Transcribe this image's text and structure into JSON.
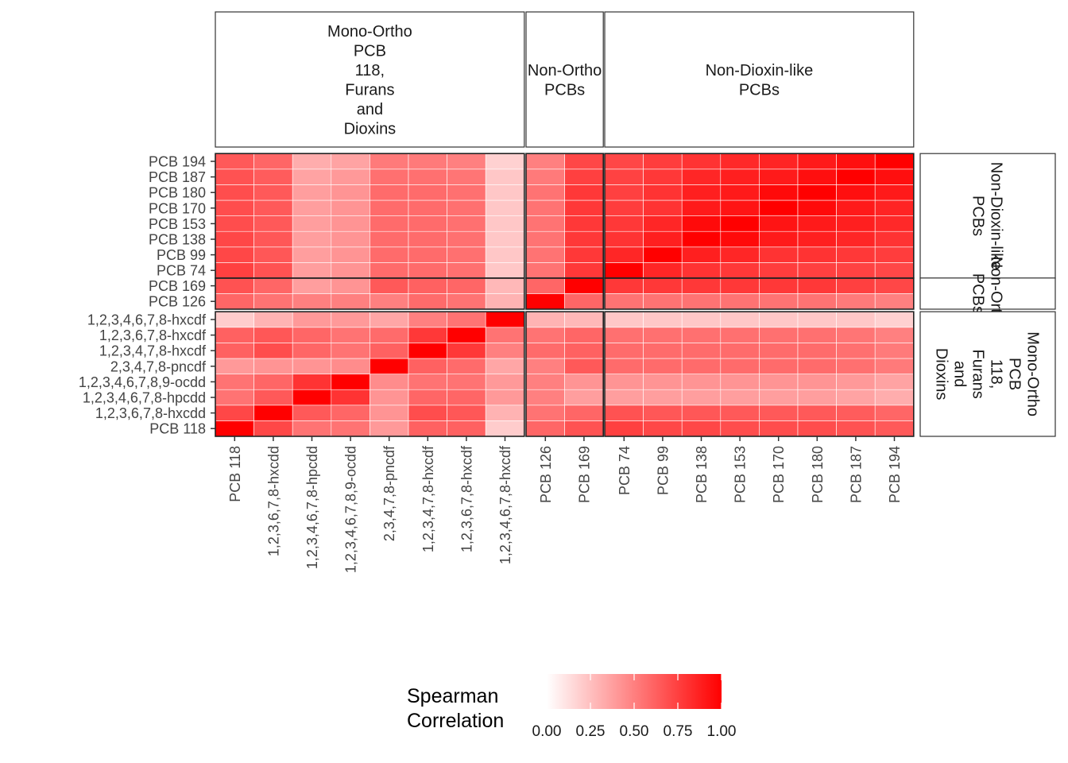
{
  "chart_data": {
    "type": "heatmap",
    "title": "",
    "xlabel": "",
    "ylabel": "",
    "groups": [
      {
        "key": "mono",
        "label": [
          "Mono-Ortho",
          "PCB",
          "118,",
          "Furans",
          "and",
          "Dioxins"
        ],
        "members": [
          "PCB 118",
          "1,2,3,6,7,8-hxcdd",
          "1,2,3,4,6,7,8-hpcdd",
          "1,2,3,4,6,7,8,9-ocdd",
          "2,3,4,7,8-pncdf",
          "1,2,3,4,7,8-hxcdf",
          "1,2,3,6,7,8-hxcdf",
          "1,2,3,4,6,7,8-hxcdf"
        ]
      },
      {
        "key": "nonortho",
        "label": [
          "Non-Ortho",
          "PCBs"
        ],
        "members": [
          "PCB 126",
          "PCB 169"
        ]
      },
      {
        "key": "nondioxin",
        "label": [
          "Non-Dioxin-like",
          "PCBs"
        ],
        "members": [
          "PCB 74",
          "PCB 99",
          "PCB 138",
          "PCB 153",
          "PCB 170",
          "PCB 180",
          "PCB 187",
          "PCB 194"
        ]
      }
    ],
    "x_order": [
      "PCB 118",
      "1,2,3,6,7,8-hxcdd",
      "1,2,3,4,6,7,8-hpcdd",
      "1,2,3,4,6,7,8,9-ocdd",
      "2,3,4,7,8-pncdf",
      "1,2,3,4,7,8-hxcdf",
      "1,2,3,6,7,8-hxcdf",
      "1,2,3,4,6,7,8-hxcdf",
      "PCB 126",
      "PCB 169",
      "PCB 74",
      "PCB 99",
      "PCB 138",
      "PCB 153",
      "PCB 170",
      "PCB 180",
      "PCB 187",
      "PCB 194"
    ],
    "y_order_bottom_to_top": [
      "PCB 118",
      "1,2,3,6,7,8-hxcdd",
      "1,2,3,4,6,7,8-hpcdd",
      "1,2,3,4,6,7,8,9-ocdd",
      "2,3,4,7,8-pncdf",
      "1,2,3,4,7,8-hxcdf",
      "1,2,3,6,7,8-hxcdf",
      "1,2,3,4,6,7,8-hxcdf",
      "PCB 126",
      "PCB 169",
      "PCB 74",
      "PCB 99",
      "PCB 138",
      "PCB 153",
      "PCB 170",
      "PCB 180",
      "PCB 187",
      "PCB 194"
    ],
    "right_strip_labels": [
      {
        "group": "nondioxin",
        "lines": [
          "Non-Dioxin-like",
          "PCBs"
        ]
      },
      {
        "group": "nonortho",
        "lines": [
          "Non-Ortho",
          "PCBs"
        ]
      },
      {
        "group": "mono",
        "lines": [
          "Mono-Ortho",
          "PCB",
          "118,",
          "Furans",
          "and",
          "Dioxins"
        ]
      }
    ],
    "matrix": [
      [
        1.0,
        0.72,
        0.55,
        0.55,
        0.4,
        0.62,
        0.62,
        0.2,
        0.6,
        0.68,
        0.75,
        0.72,
        0.72,
        0.7,
        0.7,
        0.7,
        0.68,
        0.65
      ],
      [
        0.72,
        1.0,
        0.65,
        0.6,
        0.42,
        0.7,
        0.66,
        0.3,
        0.55,
        0.6,
        0.68,
        0.66,
        0.66,
        0.65,
        0.65,
        0.65,
        0.64,
        0.6
      ],
      [
        0.55,
        0.65,
        1.0,
        0.8,
        0.42,
        0.6,
        0.6,
        0.4,
        0.5,
        0.38,
        0.38,
        0.38,
        0.38,
        0.38,
        0.38,
        0.38,
        0.36,
        0.32
      ],
      [
        0.55,
        0.6,
        0.8,
        1.0,
        0.45,
        0.55,
        0.55,
        0.4,
        0.5,
        0.42,
        0.42,
        0.42,
        0.42,
        0.42,
        0.42,
        0.42,
        0.4,
        0.36
      ],
      [
        0.4,
        0.42,
        0.42,
        0.45,
        1.0,
        0.62,
        0.58,
        0.35,
        0.5,
        0.65,
        0.58,
        0.58,
        0.58,
        0.58,
        0.58,
        0.58,
        0.56,
        0.52
      ],
      [
        0.62,
        0.7,
        0.6,
        0.55,
        0.62,
        1.0,
        0.78,
        0.5,
        0.58,
        0.62,
        0.58,
        0.58,
        0.58,
        0.58,
        0.58,
        0.58,
        0.56,
        0.52
      ],
      [
        0.62,
        0.66,
        0.6,
        0.55,
        0.58,
        0.78,
        1.0,
        0.55,
        0.55,
        0.6,
        0.56,
        0.56,
        0.56,
        0.56,
        0.56,
        0.56,
        0.54,
        0.5
      ],
      [
        0.2,
        0.3,
        0.4,
        0.4,
        0.35,
        0.5,
        0.55,
        1.0,
        0.3,
        0.28,
        0.22,
        0.22,
        0.22,
        0.22,
        0.22,
        0.22,
        0.22,
        0.18
      ],
      [
        0.6,
        0.55,
        0.5,
        0.5,
        0.5,
        0.58,
        0.55,
        0.3,
        1.0,
        0.6,
        0.55,
        0.55,
        0.55,
        0.55,
        0.55,
        0.55,
        0.52,
        0.5
      ],
      [
        0.68,
        0.6,
        0.38,
        0.42,
        0.65,
        0.62,
        0.6,
        0.28,
        0.6,
        1.0,
        0.78,
        0.78,
        0.78,
        0.78,
        0.78,
        0.78,
        0.75,
        0.72
      ],
      [
        0.75,
        0.68,
        0.38,
        0.42,
        0.58,
        0.58,
        0.56,
        0.22,
        0.55,
        0.78,
        1.0,
        0.85,
        0.8,
        0.78,
        0.76,
        0.75,
        0.74,
        0.72
      ],
      [
        0.72,
        0.66,
        0.38,
        0.42,
        0.58,
        0.58,
        0.56,
        0.22,
        0.55,
        0.78,
        0.85,
        1.0,
        0.88,
        0.85,
        0.8,
        0.8,
        0.78,
        0.76
      ],
      [
        0.72,
        0.66,
        0.38,
        0.42,
        0.58,
        0.58,
        0.56,
        0.22,
        0.55,
        0.78,
        0.8,
        0.88,
        1.0,
        0.96,
        0.9,
        0.88,
        0.85,
        0.8
      ],
      [
        0.7,
        0.65,
        0.38,
        0.42,
        0.58,
        0.58,
        0.56,
        0.22,
        0.55,
        0.78,
        0.78,
        0.85,
        0.96,
        1.0,
        0.92,
        0.9,
        0.88,
        0.84
      ],
      [
        0.7,
        0.65,
        0.38,
        0.42,
        0.58,
        0.58,
        0.56,
        0.22,
        0.55,
        0.78,
        0.76,
        0.8,
        0.9,
        0.92,
        1.0,
        0.96,
        0.9,
        0.86
      ],
      [
        0.7,
        0.65,
        0.38,
        0.42,
        0.58,
        0.58,
        0.56,
        0.22,
        0.55,
        0.78,
        0.75,
        0.8,
        0.88,
        0.9,
        0.96,
        1.0,
        0.94,
        0.9
      ],
      [
        0.68,
        0.64,
        0.36,
        0.4,
        0.56,
        0.56,
        0.54,
        0.22,
        0.52,
        0.75,
        0.74,
        0.78,
        0.85,
        0.88,
        0.9,
        0.94,
        1.0,
        0.94
      ],
      [
        0.65,
        0.6,
        0.32,
        0.36,
        0.52,
        0.52,
        0.5,
        0.18,
        0.5,
        0.72,
        0.72,
        0.76,
        0.8,
        0.84,
        0.86,
        0.9,
        0.94,
        1.0
      ]
    ],
    "legend": {
      "title": [
        "Spearman",
        "Correlation"
      ],
      "ticks": [
        0.0,
        0.25,
        0.5,
        0.75,
        1.0
      ],
      "tick_labels": [
        "0.00",
        "0.25",
        "0.50",
        "0.75",
        "1.00"
      ],
      "range": [
        0,
        1
      ],
      "low_color": "#ffffff",
      "high_color": "#ff0000",
      "placement": "bottom"
    }
  }
}
